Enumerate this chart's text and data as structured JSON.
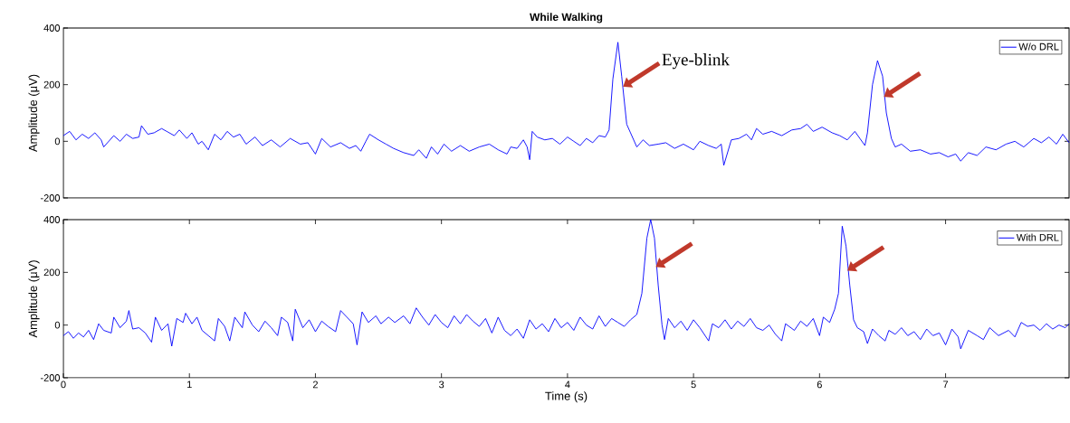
{
  "chart_data": [
    {
      "type": "line",
      "title": "While Walking",
      "ylabel": "Amplitude (μV)",
      "legend": "top right",
      "tick_labels": "y",
      "xlim": [
        0,
        7.98
      ],
      "ylim": [
        -200,
        400
      ],
      "yticks": [
        -200,
        0,
        200,
        400
      ],
      "annotations": [
        {
          "text": "Eye-blink",
          "x": 4.43,
          "y": 200
        }
      ],
      "x": [
        0,
        0.05,
        0.1,
        0.15,
        0.2,
        0.25,
        0.3,
        0.32,
        0.4,
        0.45,
        0.5,
        0.55,
        0.6,
        0.62,
        0.67,
        0.72,
        0.78,
        0.82,
        0.88,
        0.92,
        0.98,
        1.02,
        1.07,
        1.1,
        1.15,
        1.2,
        1.25,
        1.3,
        1.35,
        1.4,
        1.45,
        1.52,
        1.58,
        1.65,
        1.72,
        1.8,
        1.88,
        1.94,
        2.0,
        2.05,
        2.12,
        2.2,
        2.27,
        2.32,
        2.36,
        2.4,
        2.43,
        2.5,
        2.56,
        2.62,
        2.7,
        2.78,
        2.82,
        2.88,
        2.92,
        2.97,
        3.02,
        3.08,
        3.15,
        3.22,
        3.3,
        3.38,
        3.45,
        3.52,
        3.55,
        3.6,
        3.65,
        3.68,
        3.7,
        3.72,
        3.76,
        3.82,
        3.88,
        3.94,
        4.0,
        4.05,
        4.1,
        4.15,
        4.2,
        4.25,
        4.3,
        4.33,
        4.36,
        4.4,
        4.43,
        4.47,
        4.5,
        4.55,
        4.6,
        4.65,
        4.72,
        4.78,
        4.85,
        4.92,
        5.0,
        5.05,
        5.12,
        5.18,
        5.22,
        5.24,
        5.3,
        5.36,
        5.42,
        5.46,
        5.5,
        5.55,
        5.62,
        5.7,
        5.78,
        5.85,
        5.9,
        5.95,
        6.02,
        6.1,
        6.16,
        6.22,
        6.28,
        6.32,
        6.36,
        6.38,
        6.42,
        6.46,
        6.5,
        6.53,
        6.57,
        6.6,
        6.65,
        6.72,
        6.8,
        6.88,
        6.95,
        7.02,
        7.08,
        7.12,
        7.18,
        7.25,
        7.32,
        7.4,
        7.48,
        7.55,
        7.62,
        7.7,
        7.76,
        7.82,
        7.88,
        7.93,
        7.98
      ],
      "series": [
        {
          "name": "W/o DRL",
          "color": "#0000ff",
          "values": [
            20,
            35,
            5,
            25,
            10,
            30,
            5,
            -20,
            20,
            0,
            25,
            10,
            15,
            55,
            25,
            30,
            45,
            35,
            20,
            40,
            10,
            30,
            -10,
            0,
            -30,
            25,
            5,
            35,
            15,
            25,
            -10,
            15,
            -15,
            5,
            -20,
            10,
            -10,
            -5,
            -45,
            10,
            -20,
            -5,
            -25,
            -15,
            -35,
            0,
            25,
            5,
            -10,
            -25,
            -40,
            -50,
            -30,
            -60,
            -20,
            -45,
            -10,
            -35,
            -15,
            -35,
            -20,
            -10,
            -30,
            -45,
            -20,
            -25,
            5,
            -20,
            -65,
            35,
            15,
            5,
            10,
            -10,
            15,
            0,
            -15,
            10,
            -5,
            20,
            15,
            40,
            220,
            350,
            230,
            60,
            30,
            -20,
            5,
            -15,
            -10,
            -5,
            -25,
            -10,
            -30,
            0,
            -15,
            -25,
            -10,
            -85,
            5,
            10,
            25,
            5,
            45,
            25,
            35,
            20,
            40,
            45,
            60,
            35,
            50,
            30,
            20,
            5,
            35,
            10,
            -15,
            30,
            200,
            285,
            230,
            100,
            10,
            -20,
            -10,
            -35,
            -30,
            -45,
            -40,
            -55,
            -45,
            -70,
            -40,
            -50,
            -20,
            -30,
            -10,
            0,
            -20,
            10,
            -5,
            15,
            -10,
            25,
            -5
          ]
        }
      ]
    },
    {
      "type": "line",
      "xlabel": "Time (s)",
      "ylabel": "Amplitude (μV)",
      "legend": "top right",
      "xlim": [
        0,
        7.98
      ],
      "ylim": [
        -200,
        400
      ],
      "xticks": [
        0,
        1,
        2,
        3,
        4,
        5,
        6,
        7
      ],
      "yticks": [
        -200,
        0,
        200,
        400
      ],
      "x": [
        0,
        0.04,
        0.08,
        0.12,
        0.16,
        0.2,
        0.24,
        0.28,
        0.32,
        0.38,
        0.4,
        0.45,
        0.5,
        0.52,
        0.55,
        0.6,
        0.65,
        0.7,
        0.73,
        0.78,
        0.83,
        0.86,
        0.9,
        0.95,
        0.97,
        1.02,
        1.06,
        1.1,
        1.15,
        1.2,
        1.23,
        1.28,
        1.32,
        1.36,
        1.42,
        1.44,
        1.5,
        1.55,
        1.6,
        1.65,
        1.7,
        1.73,
        1.78,
        1.82,
        1.84,
        1.9,
        1.95,
        2.0,
        2.05,
        2.1,
        2.16,
        2.2,
        2.25,
        2.3,
        2.33,
        2.37,
        2.42,
        2.48,
        2.52,
        2.58,
        2.63,
        2.7,
        2.75,
        2.8,
        2.85,
        2.9,
        2.95,
        3.0,
        3.05,
        3.1,
        3.15,
        3.2,
        3.25,
        3.3,
        3.35,
        3.4,
        3.45,
        3.5,
        3.55,
        3.6,
        3.65,
        3.7,
        3.75,
        3.8,
        3.85,
        3.9,
        3.95,
        4.0,
        4.05,
        4.1,
        4.15,
        4.2,
        4.25,
        4.3,
        4.35,
        4.4,
        4.45,
        4.5,
        4.55,
        4.59,
        4.63,
        4.66,
        4.69,
        4.72,
        4.75,
        4.77,
        4.8,
        4.85,
        4.9,
        4.95,
        5.0,
        5.05,
        5.12,
        5.15,
        5.2,
        5.25,
        5.3,
        5.35,
        5.4,
        5.45,
        5.5,
        5.55,
        5.6,
        5.65,
        5.7,
        5.73,
        5.8,
        5.85,
        5.9,
        5.95,
        6.0,
        6.03,
        6.08,
        6.12,
        6.15,
        6.18,
        6.21,
        6.24,
        6.27,
        6.3,
        6.35,
        6.38,
        6.42,
        6.47,
        6.52,
        6.55,
        6.6,
        6.65,
        6.7,
        6.75,
        6.8,
        6.85,
        6.9,
        6.95,
        7.0,
        7.05,
        7.1,
        7.12,
        7.18,
        7.25,
        7.3,
        7.35,
        7.42,
        7.5,
        7.55,
        7.6,
        7.65,
        7.7,
        7.75,
        7.8,
        7.85,
        7.9,
        7.95,
        7.98
      ],
      "series": [
        {
          "name": "With DRL",
          "color": "#0000ff",
          "values": [
            -40,
            -25,
            -50,
            -30,
            -45,
            -20,
            -55,
            5,
            -20,
            -30,
            30,
            -10,
            15,
            55,
            -15,
            -10,
            -30,
            -65,
            30,
            -20,
            5,
            -80,
            25,
            10,
            45,
            5,
            30,
            -20,
            -40,
            -60,
            25,
            -5,
            -60,
            30,
            -10,
            50,
            0,
            -25,
            15,
            -10,
            -40,
            30,
            10,
            -60,
            60,
            -10,
            20,
            -25,
            15,
            -5,
            -25,
            55,
            30,
            5,
            -75,
            50,
            10,
            35,
            5,
            30,
            10,
            35,
            5,
            65,
            30,
            0,
            40,
            10,
            -10,
            35,
            5,
            40,
            15,
            -5,
            25,
            -30,
            30,
            -20,
            -40,
            -15,
            -50,
            20,
            -15,
            5,
            -25,
            25,
            -10,
            10,
            -20,
            30,
            0,
            -15,
            35,
            -5,
            25,
            10,
            -5,
            20,
            40,
            120,
            330,
            400,
            330,
            150,
            0,
            -55,
            25,
            -10,
            15,
            -20,
            20,
            -10,
            -60,
            5,
            -10,
            20,
            -15,
            15,
            -5,
            25,
            -10,
            -20,
            0,
            -35,
            -60,
            5,
            -20,
            15,
            -5,
            25,
            -40,
            30,
            10,
            60,
            120,
            375,
            300,
            150,
            20,
            -10,
            -25,
            -70,
            -15,
            -40,
            -60,
            -20,
            -35,
            -10,
            -40,
            -25,
            -55,
            -15,
            -40,
            -30,
            -75,
            -15,
            -45,
            -90,
            -20,
            -40,
            -55,
            -10,
            -40,
            -20,
            -45,
            10,
            -5,
            0,
            -20,
            5,
            -15,
            0,
            -10,
            5
          ]
        }
      ]
    }
  ]
}
